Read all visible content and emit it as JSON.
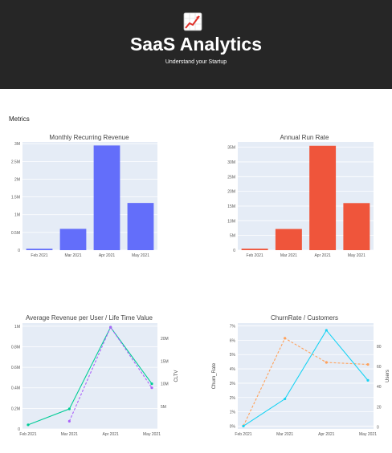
{
  "header": {
    "title": "SaaS Analytics",
    "subtitle": "Understand your Startup",
    "logo_icon": "chart-increasing-icon"
  },
  "section": {
    "label": "Metrics"
  },
  "colors": {
    "header_bg": "#262626",
    "plot_bg": "#e5ecf6",
    "blue": "#636efa",
    "red": "#ef553b",
    "green": "#00cc96",
    "purple": "#ab63fa",
    "orange": "#ffa15a",
    "cyan": "#19d3f3"
  },
  "chart_data": [
    {
      "type": "bar",
      "title": "Monthly Recurring Revenue",
      "categories": [
        "Feb 2021",
        "Mar 2021",
        "Apr 2021",
        "May 2021"
      ],
      "values": [
        40000,
        600000,
        2950000,
        1330000
      ],
      "ylim": [
        0,
        3050000
      ],
      "yticks": [
        0,
        500000,
        1000000,
        1500000,
        2000000,
        2500000,
        3000000
      ],
      "ytick_labels": [
        "0",
        "0.5M",
        "1M",
        "1.5M",
        "2M",
        "2.5M",
        "3M"
      ],
      "color": "#636efa",
      "grid": true
    },
    {
      "type": "bar",
      "title": "Annual Run Rate",
      "categories": [
        "Feb 2021",
        "Mar 2021",
        "Apr 2021",
        "May 2021"
      ],
      "values": [
        500000,
        7200000,
        35500000,
        16000000
      ],
      "ylim": [
        0,
        36800000
      ],
      "yticks": [
        0,
        5000000,
        10000000,
        15000000,
        20000000,
        25000000,
        30000000,
        35000000
      ],
      "ytick_labels": [
        "0",
        "5M",
        "10M",
        "15M",
        "20M",
        "25M",
        "30M",
        "35M"
      ],
      "color": "#ef553b",
      "grid": true
    },
    {
      "type": "line",
      "title": "Average Revenue per User / Life Time Value",
      "categories": [
        "Feb 2021",
        "Mar 2021",
        "Apr 2021",
        "May 2021"
      ],
      "ylim": [
        0,
        1030000
      ],
      "yticks": [
        0,
        200000,
        400000,
        600000,
        800000,
        1000000
      ],
      "ytick_labels": [
        "0",
        "0.2M",
        "0.4M",
        "0.6M",
        "0.8M",
        "1M"
      ],
      "y2lim": [
        0,
        23400000
      ],
      "y2ticks": [
        5000000,
        10000000,
        15000000,
        20000000
      ],
      "y2tick_labels": [
        "5M",
        "10M",
        "15M",
        "20M"
      ],
      "y2label": "CLTV",
      "series": [
        {
          "values": [
            40000,
            195000,
            990000,
            440000
          ],
          "axis": "y",
          "color": "#00cc96",
          "dash": false
        },
        {
          "values": [
            null,
            1700000,
            22500000,
            9100000
          ],
          "axis": "y2",
          "color": "#ab63fa",
          "dash": true
        }
      ],
      "grid": true
    },
    {
      "type": "line",
      "title": "ChurnRate / Customers",
      "categories": [
        "Feb 2021",
        "Mar 2021",
        "Apr 2021",
        "May 2021"
      ],
      "ylim": [
        -0.2,
        7.2
      ],
      "yticks": [
        0,
        1,
        2,
        3,
        4,
        5,
        6,
        7
      ],
      "ytick_labels": [
        "0%",
        "1%",
        "2%",
        "3%",
        "4%",
        "5%",
        "6%",
        "7%"
      ],
      "ylabel": "Churn_Rate",
      "y2lim": [
        -2,
        103
      ],
      "y2ticks": [
        0,
        20,
        40,
        60,
        80
      ],
      "y2tick_labels": [
        "0",
        "20",
        "40",
        "60",
        "80"
      ],
      "y2label": "Users",
      "series": [
        {
          "values": [
            1,
            88,
            64,
            62
          ],
          "axis": "y2",
          "color": "#ffa15a",
          "dash": true
        },
        {
          "values": [
            0,
            1.9,
            6.7,
            3.2
          ],
          "axis": "y",
          "color": "#19d3f3",
          "dash": false
        }
      ],
      "grid": true
    }
  ]
}
